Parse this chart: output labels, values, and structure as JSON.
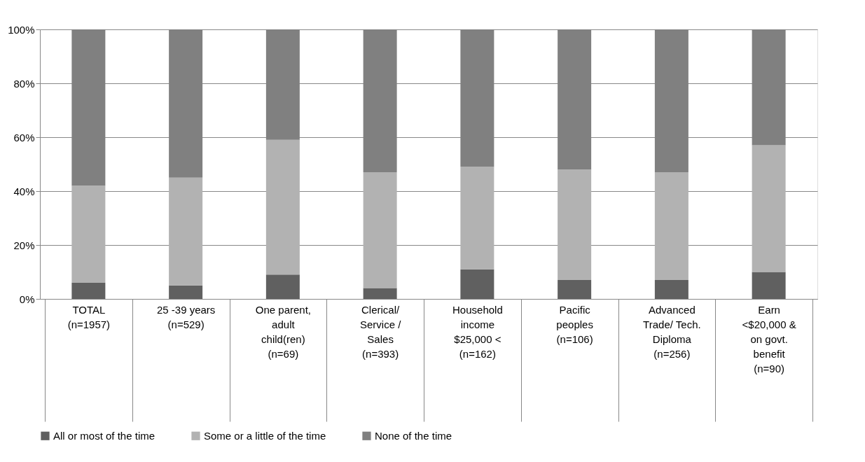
{
  "chart_data": {
    "type": "bar",
    "stacked": true,
    "categories": [
      "TOTAL\n(n=1957)",
      "25 -39 years\n(n=529)",
      "One parent,\nadult\nchild(ren)\n(n=69)",
      "Clerical/\nService /\nSales\n(n=393)",
      "Household\nincome\n$25,000 <\n(n=162)",
      "Pacific\npeoples\n(n=106)",
      "Advanced\nTrade/ Tech.\nDiploma\n(n=256)",
      "Earn\n<$20,000 &\non govt.\nbenefit\n(n=90)"
    ],
    "series": [
      {
        "name": "All or most of the time",
        "color": "#606060",
        "values": [
          6,
          5,
          9,
          4,
          11,
          7,
          7,
          10
        ]
      },
      {
        "name": "Some or a little of the time",
        "color": "#b2b2b2",
        "values": [
          36,
          40,
          50,
          43,
          38,
          41,
          40,
          47
        ]
      },
      {
        "name": "None of the time",
        "color": "#808080",
        "values": [
          58,
          55,
          41,
          53,
          51,
          52,
          53,
          43
        ]
      }
    ],
    "ylim": [
      0,
      100
    ],
    "yticks": [
      {
        "value": 0,
        "label": "0%"
      },
      {
        "value": 20,
        "label": "20%"
      },
      {
        "value": 40,
        "label": "40%"
      },
      {
        "value": 60,
        "label": "60%"
      },
      {
        "value": 80,
        "label": "80%"
      },
      {
        "value": 100,
        "label": "100%"
      }
    ],
    "grid": "y",
    "legend": "bottom"
  }
}
